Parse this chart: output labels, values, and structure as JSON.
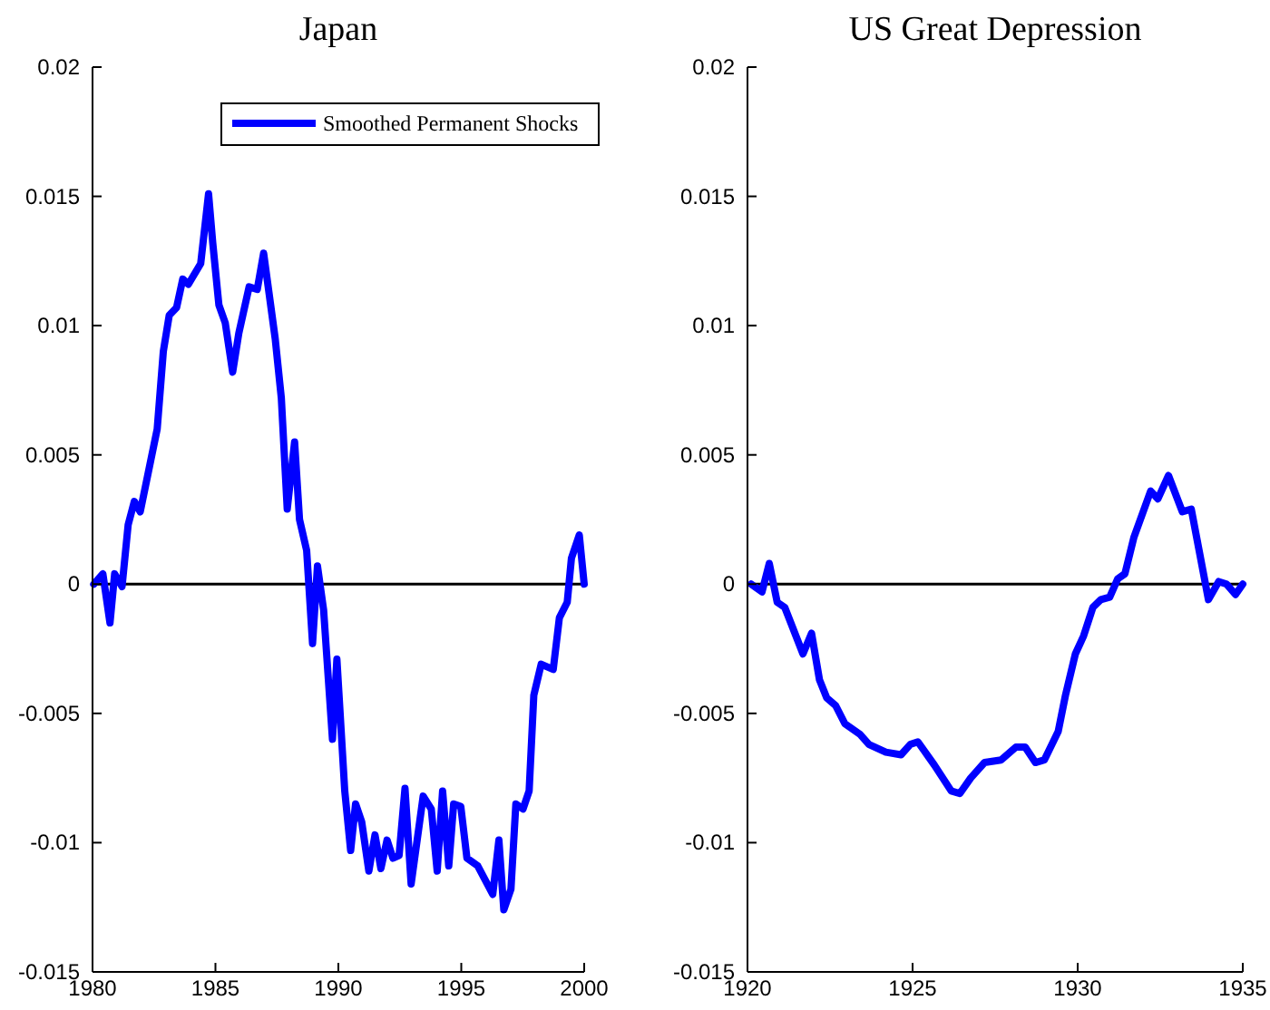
{
  "chart_data": [
    {
      "type": "line",
      "title": "Japan",
      "xlim": [
        1980,
        2000
      ],
      "ylim": [
        -0.015,
        0.02
      ],
      "xticks": [
        1980,
        1985,
        1990,
        1995,
        2000
      ],
      "yticks": [
        -0.015,
        -0.01,
        -0.005,
        0,
        0.005,
        0.01,
        0.015,
        0.02
      ],
      "legend": "top right",
      "ref_lines": [
        {
          "axis": "y",
          "value": 0,
          "color": "#000000"
        }
      ],
      "series": [
        {
          "name": "Smoothed Permanent Shocks",
          "color": "#0000ff",
          "x": [
            1980.05,
            1980.42,
            1980.71,
            1980.9,
            1981.2,
            1981.45,
            1981.7,
            1981.94,
            1982.63,
            1982.88,
            1983.12,
            1983.42,
            1983.67,
            1983.9,
            1984.4,
            1984.72,
            1984.89,
            1985.14,
            1985.4,
            1985.7,
            1985.95,
            1986.37,
            1986.7,
            1986.96,
            1987.43,
            1987.68,
            1987.92,
            1988.22,
            1988.42,
            1988.71,
            1988.95,
            1989.15,
            1989.4,
            1989.76,
            1989.94,
            1990.26,
            1990.5,
            1990.7,
            1990.95,
            1991.24,
            1991.49,
            1991.73,
            1991.98,
            1992.22,
            1992.47,
            1992.71,
            1992.96,
            1993.45,
            1993.78,
            1994.02,
            1994.24,
            1994.49,
            1994.69,
            1994.98,
            1995.23,
            1995.67,
            1996.28,
            1996.53,
            1996.73,
            1997.02,
            1997.22,
            1997.51,
            1997.76,
            1997.95,
            1998.25,
            1998.74,
            1998.99,
            1999.31,
            1999.48,
            1999.8,
            2000
          ],
          "values": [
            0,
            0.0004,
            -0.0015,
            0.0004,
            -0.0001,
            0.0023,
            0.0032,
            0.0028,
            0.006,
            0.009,
            0.0104,
            0.0107,
            0.0118,
            0.0116,
            0.0124,
            0.0151,
            0.0132,
            0.0108,
            0.0101,
            0.0082,
            0.0097,
            0.0115,
            0.0114,
            0.0128,
            0.0095,
            0.0072,
            0.0029,
            0.0055,
            0.0025,
            0.0013,
            -0.0023,
            0.0007,
            -0.001,
            -0.006,
            -0.0029,
            -0.008,
            -0.0103,
            -0.0085,
            -0.0092,
            -0.0111,
            -0.0097,
            -0.011,
            -0.0099,
            -0.0106,
            -0.0105,
            -0.0079,
            -0.0116,
            -0.0082,
            -0.0087,
            -0.0111,
            -0.008,
            -0.0109,
            -0.0085,
            -0.0086,
            -0.0106,
            -0.0109,
            -0.012,
            -0.0099,
            -0.0126,
            -0.0118,
            -0.0085,
            -0.0087,
            -0.008,
            -0.0043,
            -0.0031,
            -0.0033,
            -0.0013,
            -0.0007,
            0.001,
            0.0019,
            0
          ]
        }
      ]
    },
    {
      "type": "line",
      "title": "US Great Depression",
      "xlim": [
        1920,
        1935
      ],
      "ylim": [
        -0.015,
        0.02
      ],
      "xticks": [
        1920,
        1925,
        1930,
        1935
      ],
      "yticks": [
        -0.015,
        -0.01,
        -0.005,
        0,
        0.005,
        0.01,
        0.015,
        0.02
      ],
      "ref_lines": [
        {
          "axis": "y",
          "value": 0,
          "color": "#000000"
        }
      ],
      "series": [
        {
          "color": "#0000ff",
          "x": [
            1920.11,
            1920.44,
            1920.66,
            1920.9,
            1921.13,
            1921.68,
            1921.94,
            1922.18,
            1922.4,
            1922.67,
            1922.95,
            1923.4,
            1923.68,
            1924.19,
            1924.65,
            1924.93,
            1925.16,
            1925.66,
            1926.17,
            1926.43,
            1926.76,
            1927.18,
            1927.68,
            1928.13,
            1928.41,
            1928.72,
            1928.99,
            1929.41,
            1929.63,
            1929.93,
            1930.18,
            1930.46,
            1930.7,
            1930.97,
            1931.21,
            1931.43,
            1931.7,
            1932.21,
            1932.43,
            1932.75,
            1933.17,
            1933.44,
            1933.96,
            1934.27,
            1934.51,
            1934.78,
            1935
          ],
          "values": [
            0,
            -0.0003,
            0.0008,
            -0.0007,
            -0.0009,
            -0.0027,
            -0.0019,
            -0.0037,
            -0.0044,
            -0.0047,
            -0.0054,
            -0.0058,
            -0.0062,
            -0.0065,
            -0.0066,
            -0.0062,
            -0.0061,
            -0.007,
            -0.008,
            -0.0081,
            -0.0075,
            -0.0069,
            -0.0068,
            -0.0063,
            -0.0063,
            -0.0069,
            -0.0068,
            -0.0057,
            -0.0043,
            -0.0027,
            -0.002,
            -0.0009,
            -0.0006,
            -0.0005,
            0.0002,
            0.0004,
            0.0018,
            0.0036,
            0.0033,
            0.0042,
            0.0028,
            0.0029,
            -0.0006,
            0.0001,
            0,
            -0.0004,
            0
          ]
        }
      ]
    }
  ]
}
